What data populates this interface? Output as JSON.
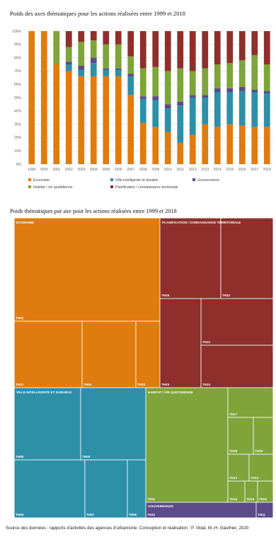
{
  "titles": {
    "bar_title": "Poids des axes thématiques pour les actions réalisées entre 1999 et 2018",
    "treemap_title": "Poids thématiques par axe pour les actions réalisées entre 1999 et 2018"
  },
  "source": "Source des données : rapports d'activités des agences d'urbanisme. Conception et réalisation : P. Vidal, M.-H. Gauthier, 2020",
  "colors": {
    "economie": "#E07B10",
    "ville": "#2E8FA8",
    "gouvernance": "#5C4A8A",
    "habitat": "#7EA43A",
    "planification": "#8E2F2C"
  },
  "chart_data": [
    {
      "type": "bar",
      "stacked": true,
      "title": "Poids des axes thématiques pour les actions réalisées entre 1999 et 2018",
      "categories": [
        "1999",
        "2000",
        "2001",
        "2002",
        "2003",
        "2004",
        "2005",
        "2006",
        "2007",
        "2008",
        "2009",
        "2010",
        "2011",
        "2012",
        "2013",
        "2014",
        "2015",
        "2016",
        "2017",
        "2018"
      ],
      "ylim": [
        0,
        100
      ],
      "yticks": [
        "0%",
        "10%",
        "20%",
        "30%",
        "40%",
        "50%",
        "60%",
        "70%",
        "80%",
        "90%",
        "100%"
      ],
      "grid": true,
      "legend_position": "bottom",
      "series": [
        {
          "name": "Economie",
          "color_key": "economie",
          "values": [
            100,
            100,
            75,
            70,
            66,
            66,
            66,
            66,
            52,
            31,
            28,
            24,
            16,
            22,
            30,
            28,
            30,
            29,
            28,
            28
          ]
        },
        {
          "name": "Ville intelligente et durable",
          "color_key": "ville",
          "values": [
            0,
            0,
            0,
            5,
            5,
            10,
            5,
            5,
            14,
            18,
            20,
            18,
            28,
            28,
            20,
            26,
            24,
            26,
            26,
            25
          ]
        },
        {
          "name": "Gouvernance",
          "color_key": "gouvernance",
          "values": [
            0,
            0,
            0,
            2,
            3,
            4,
            1,
            1,
            2,
            2,
            3,
            3,
            3,
            2,
            2,
            3,
            3,
            3,
            2,
            2
          ]
        },
        {
          "name": "Habitat / vie quotidienne",
          "color_key": "habitat",
          "values": [
            0,
            0,
            25,
            11,
            18,
            13,
            18,
            18,
            13,
            21,
            22,
            25,
            25,
            18,
            20,
            18,
            19,
            20,
            26,
            20
          ]
        },
        {
          "name": "Planification / connaissance territoriale",
          "color_key": "planification",
          "values": [
            0,
            0,
            0,
            12,
            8,
            7,
            10,
            10,
            19,
            28,
            27,
            30,
            28,
            30,
            28,
            25,
            24,
            22,
            18,
            25
          ]
        }
      ]
    },
    {
      "type": "treemap",
      "title": "Poids thématiques par axe pour les actions réalisées entre 1999 et 2018",
      "groups": [
        {
          "name": "ECONOMIE",
          "color_key": "economie",
          "items": [
            "TH02",
            "TH01",
            "TH04",
            "TH03"
          ]
        },
        {
          "name": "PLANIFICATION / CONNAISSANCE TERRITORIALE",
          "color_key": "planification",
          "items": [
            "TH25",
            "TH22",
            "TH21",
            "TH23",
            "TH24"
          ]
        },
        {
          "name": "VILLE INTELLIGENTE ET DURABLE",
          "color_key": "ville",
          "items": [
            "TH08",
            "TH09",
            "TH05",
            "TH07",
            "TH06"
          ]
        },
        {
          "name": "HABITAT / VIE QUOTIDIENNE",
          "color_key": "habitat",
          "items": [
            "TH16",
            "TH17",
            "TH18",
            "TH19",
            "TH12",
            "TH13",
            "TH14",
            "TH15",
            "TH20"
          ]
        },
        {
          "name": "GOUVERNANCE",
          "color_key": "gouvernance",
          "items": [
            "TH10",
            "TH11"
          ]
        }
      ]
    }
  ]
}
